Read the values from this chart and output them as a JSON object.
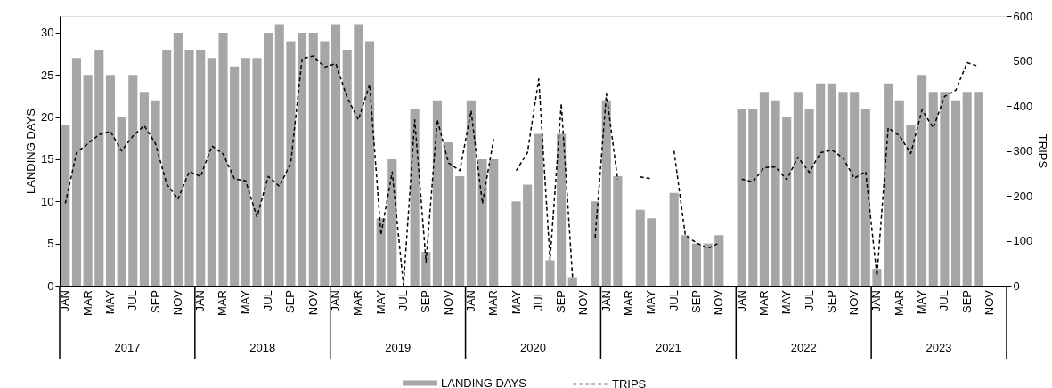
{
  "chart_data": {
    "type": "bar",
    "ylabel": "LANDING DAYS",
    "y2label": "TRIPS",
    "legend": "bottom",
    "categories": [
      "JAN",
      null,
      "MAR",
      null,
      "MAY",
      null,
      "JUL",
      null,
      "SEP",
      null,
      "NOV",
      null,
      "JAN",
      null,
      "MAR",
      null,
      "MAY",
      null,
      "JUL",
      null,
      "SEP",
      null,
      "NOV",
      null,
      "JAN",
      null,
      "MAR",
      null,
      "MAY",
      null,
      "JUL",
      null,
      "SEP",
      null,
      "NOV",
      null,
      "JAN",
      null,
      "MAR",
      null,
      "MAY",
      null,
      "JUL",
      null,
      "SEP",
      null,
      "NOV",
      null,
      "JAN",
      null,
      "MAR",
      null,
      "MAY",
      null,
      "JUL",
      null,
      "SEP",
      null,
      "NOV",
      null,
      "JAN",
      null,
      "MAR",
      null,
      "MAY",
      null,
      "JUL",
      null,
      "SEP",
      null,
      "NOV",
      null,
      "JAN",
      null,
      "MAR",
      null,
      "MAY",
      null,
      "JUL",
      null,
      "SEP",
      null,
      "NOV",
      null
    ],
    "annotations": [
      "2017",
      "2018",
      "2019",
      "2020",
      "2021",
      "2022",
      "2023"
    ],
    "ylim": [
      0,
      32
    ],
    "yticks": [
      0,
      5,
      10,
      15,
      20,
      25,
      30
    ],
    "y2lim": [
      0,
      600
    ],
    "y2ticks": [
      0,
      100,
      200,
      300,
      400,
      500,
      600
    ],
    "series": [
      {
        "name": "LANDING DAYS",
        "color": "#a6a6a6",
        "values": [
          19,
          27,
          25,
          28,
          25,
          20,
          25,
          23,
          22,
          28,
          30,
          28,
          28,
          27,
          30,
          26,
          27,
          27,
          30,
          31,
          29,
          30,
          30,
          29,
          31,
          28,
          31,
          29,
          8,
          15,
          null,
          21,
          4,
          22,
          17,
          13,
          22,
          15,
          15,
          null,
          10,
          12,
          18,
          3,
          18,
          1,
          null,
          10,
          22,
          13,
          null,
          9,
          8,
          null,
          11,
          6,
          5,
          5,
          6,
          null,
          21,
          21,
          23,
          22,
          20,
          23,
          21,
          24,
          24,
          23,
          23,
          21,
          2,
          24,
          22,
          19,
          25,
          23,
          23,
          22,
          23,
          23,
          null,
          null
        ]
      },
      {
        "name": "TRIPS",
        "type": "line",
        "axis": "y2",
        "color": "#000000",
        "line_style": "dashed",
        "values": [
          183,
          296,
          316,
          336,
          343,
          300,
          333,
          356,
          316,
          226,
          193,
          254,
          243,
          311,
          293,
          238,
          233,
          153,
          243,
          221,
          273,
          505,
          511,
          486,
          494,
          419,
          369,
          448,
          113,
          253,
          0,
          369,
          53,
          369,
          273,
          256,
          389,
          183,
          326,
          null,
          256,
          296,
          460,
          57,
          405,
          17,
          null,
          107,
          427,
          236,
          null,
          242,
          238,
          null,
          300,
          112,
          95,
          83,
          95,
          null,
          237,
          231,
          263,
          264,
          236,
          286,
          252,
          296,
          302,
          284,
          239,
          254,
          22,
          351,
          334,
          294,
          391,
          351,
          421,
          435,
          496,
          488,
          null,
          null
        ]
      }
    ]
  }
}
